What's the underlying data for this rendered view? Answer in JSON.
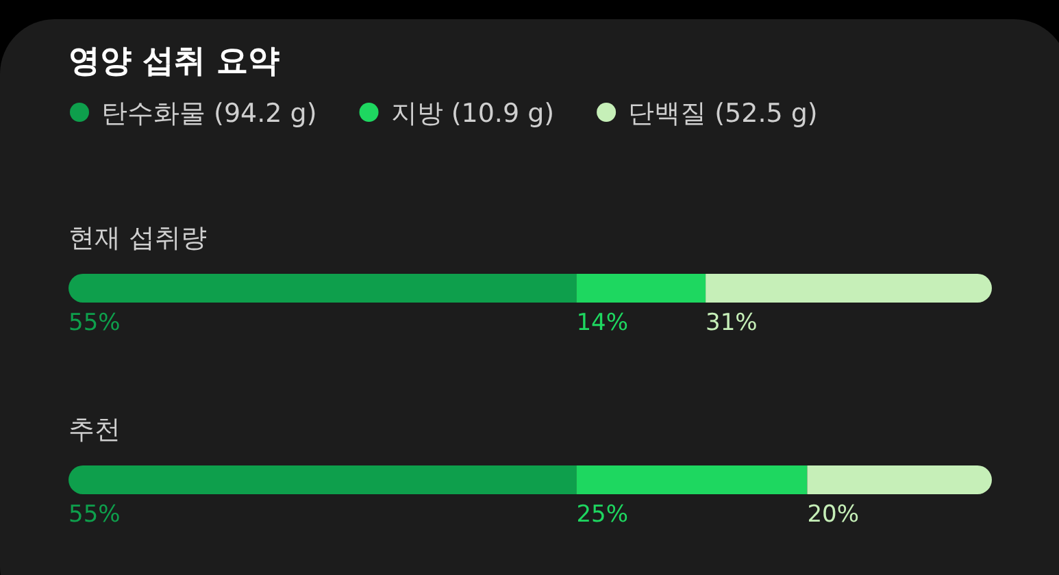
{
  "chart_data": {
    "type": "bar",
    "orientation": "horizontal",
    "stacked": true,
    "title": "영양 섭취 요약",
    "categories": [
      "현재 섭취량",
      "추천"
    ],
    "series": [
      {
        "name": "탄수화물 (94.2 g)",
        "color": "#0e9f4c",
        "values": [
          55,
          55
        ],
        "value_labels": [
          "55%",
          "55%"
        ]
      },
      {
        "name": "지방 (10.9 g)",
        "color": "#1ed760",
        "values": [
          14,
          25
        ],
        "value_labels": [
          "14%",
          "25%"
        ]
      },
      {
        "name": "단백질 (52.5 g)",
        "color": "#c6efb8",
        "values": [
          31,
          20
        ],
        "value_labels": [
          "31%",
          "20%"
        ]
      }
    ],
    "legend": "top"
  }
}
